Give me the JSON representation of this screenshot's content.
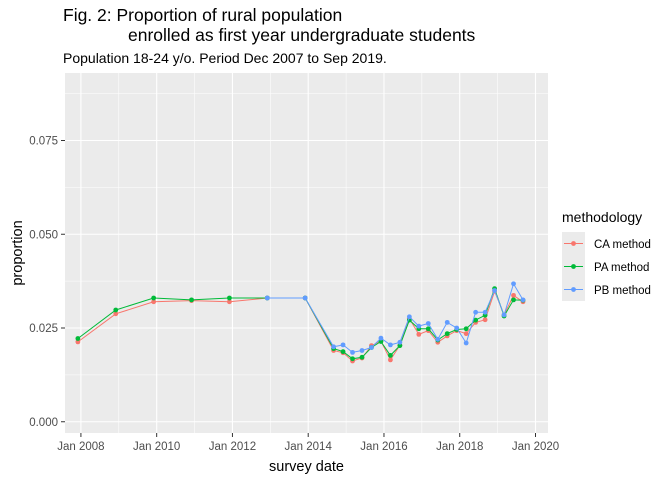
{
  "chart_data": {
    "type": "line",
    "title_line1": "Fig. 2: Proportion of rural population",
    "title_line2": "enrolled as first year undergraduate students",
    "subtitle": "Population 18-24 y/o. Period Dec 2007 to Sep 2019.",
    "xlabel": "survey date",
    "ylabel": "proportion",
    "x_ticks": [
      "Jan 2008",
      "Jan 2010",
      "Jan 2012",
      "Jan 2014",
      "Jan 2016",
      "Jan 2018",
      "Jan 2020"
    ],
    "x_tick_values": [
      2008.0,
      2010.0,
      2012.0,
      2014.0,
      2016.0,
      2018.0,
      2020.0
    ],
    "y_ticks": [
      "0.000",
      "0.025",
      "0.050",
      "0.075"
    ],
    "y_tick_values": [
      0.0,
      0.025,
      0.05,
      0.075
    ],
    "xlim": [
      2007.58,
      2020.33
    ],
    "ylim": [
      -0.003,
      0.093
    ],
    "legend": {
      "title": "methodology",
      "position": "right"
    },
    "colors": {
      "panel": "#ebebeb",
      "grid_major": "#ffffff",
      "CA method": "#F8766D",
      "PA method": "#00BA38",
      "PB method": "#619CFF"
    },
    "series": [
      {
        "name": "CA method",
        "x": [
          2007.92,
          2008.92,
          2009.92,
          2010.92,
          2011.92,
          2012.92,
          2013.92,
          2014.67,
          2014.92,
          2015.17,
          2015.42,
          2015.67,
          2015.92,
          2016.17,
          2016.42,
          2016.67,
          2016.92,
          2017.17,
          2017.42,
          2017.67,
          2017.92,
          2018.17,
          2018.42,
          2018.67,
          2018.92,
          2019.17,
          2019.42,
          2019.67
        ],
        "y": [
          0.0213,
          0.0288,
          0.032,
          0.0323,
          0.032,
          0.033,
          0.033,
          0.019,
          0.0184,
          0.0162,
          0.017,
          0.0203,
          0.0215,
          0.0165,
          0.0204,
          0.0275,
          0.0233,
          0.0243,
          0.0212,
          0.0229,
          0.0243,
          0.0235,
          0.0265,
          0.0272,
          0.0348,
          0.0285,
          0.0337,
          0.032
        ]
      },
      {
        "name": "PA method",
        "x": [
          2007.92,
          2008.92,
          2009.92,
          2010.92,
          2011.92,
          2012.92,
          2013.92,
          2014.67,
          2014.92,
          2015.17,
          2015.42,
          2015.67,
          2015.92,
          2016.17,
          2016.42,
          2016.67,
          2016.92,
          2017.17,
          2017.42,
          2017.67,
          2017.92,
          2018.17,
          2018.42,
          2018.67,
          2018.92,
          2019.17,
          2019.42,
          2019.67
        ],
        "y": [
          0.0222,
          0.0298,
          0.033,
          0.0325,
          0.033,
          0.033,
          0.033,
          0.0195,
          0.0187,
          0.0168,
          0.0172,
          0.0198,
          0.0214,
          0.0177,
          0.0203,
          0.0271,
          0.0248,
          0.0248,
          0.0218,
          0.0235,
          0.0246,
          0.0248,
          0.0271,
          0.0284,
          0.0355,
          0.0282,
          0.0325,
          0.0324
        ]
      },
      {
        "name": "PB method",
        "x": [
          2012.92,
          2013.92,
          2014.67,
          2014.92,
          2015.17,
          2015.42,
          2015.67,
          2015.92,
          2016.17,
          2016.42,
          2016.67,
          2016.92,
          2017.17,
          2017.42,
          2017.67,
          2017.92,
          2018.17,
          2018.42,
          2018.67,
          2018.92,
          2019.17,
          2019.42,
          2019.67
        ],
        "y": [
          0.033,
          0.033,
          0.02,
          0.0205,
          0.0185,
          0.019,
          0.0198,
          0.0223,
          0.0205,
          0.0212,
          0.028,
          0.0255,
          0.0262,
          0.022,
          0.0265,
          0.025,
          0.021,
          0.0292,
          0.0292,
          0.035,
          0.0285,
          0.0368,
          0.0325
        ]
      }
    ]
  }
}
